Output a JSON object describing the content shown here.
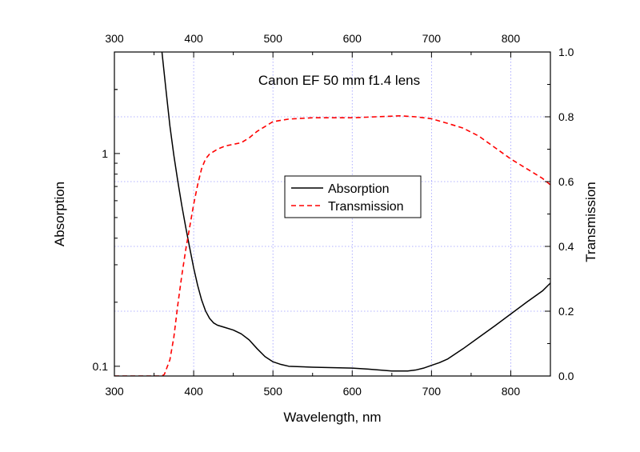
{
  "chart_data": {
    "type": "line",
    "title": "Canon EF 50 mm f1.4 lens",
    "xlabel": "Wavelength, nm",
    "ylabel_left": "Absorption",
    "ylabel_right": "Transmission",
    "xlim": [
      300,
      850
    ],
    "ylim_left": [
      0.09,
      3.0
    ],
    "yscale_left": "log",
    "ylim_right": [
      0.0,
      1.0
    ],
    "x_ticks": [
      "300",
      "400",
      "500",
      "600",
      "700",
      "800"
    ],
    "y_left_ticks": [
      "0.1",
      "1"
    ],
    "y_right_ticks": [
      "0.0",
      "0.2",
      "0.4",
      "0.6",
      "0.8",
      "1.0"
    ],
    "grid": true,
    "legend_position": "center",
    "series": [
      {
        "name": "Absorption",
        "axis": "left",
        "color": "#000000",
        "style": "solid",
        "x": [
          360,
          365,
          370,
          375,
          380,
          385,
          390,
          395,
          400,
          405,
          410,
          415,
          420,
          425,
          430,
          440,
          450,
          460,
          470,
          480,
          490,
          500,
          510,
          520,
          550,
          600,
          620,
          650,
          670,
          680,
          690,
          700,
          710,
          720,
          740,
          760,
          780,
          800,
          820,
          840,
          850
        ],
        "y": [
          3.0,
          2.0,
          1.35,
          0.98,
          0.74,
          0.57,
          0.45,
          0.36,
          0.29,
          0.24,
          0.205,
          0.182,
          0.168,
          0.16,
          0.156,
          0.152,
          0.148,
          0.142,
          0.133,
          0.121,
          0.111,
          0.105,
          0.102,
          0.1,
          0.099,
          0.098,
          0.097,
          0.095,
          0.095,
          0.096,
          0.098,
          0.101,
          0.104,
          0.108,
          0.121,
          0.137,
          0.155,
          0.176,
          0.2,
          0.226,
          0.246
        ]
      },
      {
        "name": "Transmission",
        "axis": "right",
        "color": "#ff0000",
        "style": "dashed",
        "x": [
          300,
          360,
          363,
          370,
          375,
          380,
          385,
          390,
          395,
          400,
          405,
          410,
          415,
          420,
          430,
          440,
          460,
          470,
          480,
          490,
          500,
          520,
          550,
          600,
          630,
          660,
          680,
          690,
          700,
          720,
          740,
          760,
          780,
          800,
          820,
          840,
          850
        ],
        "y": [
          0.0,
          0.0,
          0.005,
          0.05,
          0.12,
          0.22,
          0.31,
          0.39,
          0.46,
          0.53,
          0.59,
          0.64,
          0.67,
          0.685,
          0.7,
          0.71,
          0.72,
          0.735,
          0.755,
          0.77,
          0.785,
          0.793,
          0.797,
          0.797,
          0.8,
          0.803,
          0.8,
          0.797,
          0.794,
          0.78,
          0.765,
          0.74,
          0.705,
          0.67,
          0.64,
          0.61,
          0.59
        ]
      }
    ]
  }
}
